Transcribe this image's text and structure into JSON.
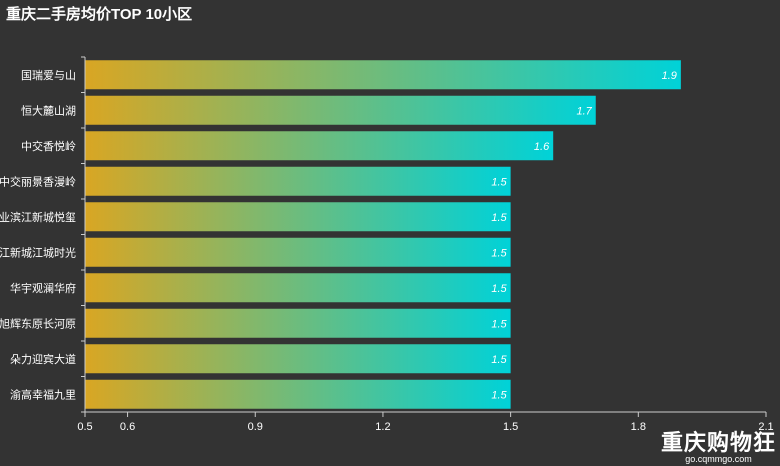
{
  "chart_data": {
    "type": "bar",
    "orientation": "horizontal",
    "title": "重庆二手房均价TOP 10小区",
    "categories": [
      "国瑞爱与山",
      "恒大麓山湖",
      "中交香悦岭",
      "中交丽景香漫岭",
      "业滨江新城悦玺",
      "江新城江城时光",
      "华宇观澜华府",
      "旭辉东原长河原",
      "朵力迎宾大道",
      "渝高幸福九里"
    ],
    "values": [
      1.9,
      1.7,
      1.6,
      1.5,
      1.5,
      1.5,
      1.5,
      1.5,
      1.5,
      1.5
    ],
    "value_labels": [
      "1.9",
      "1.7",
      "1.6",
      "1.5",
      "1.5",
      "1.5",
      "1.5",
      "1.5",
      "1.5",
      "1.5"
    ],
    "xlim": [
      0.5,
      2.1
    ],
    "xticks": [
      0.5,
      0.6,
      0.9,
      1.2,
      1.5,
      1.8,
      2.1
    ],
    "xtick_labels": [
      "0.5",
      "0.6",
      "0.9",
      "1.2",
      "1.5",
      "1.8",
      "2.1"
    ],
    "xlabel": "",
    "ylabel": "",
    "grid": false,
    "legend": "none",
    "colors": {
      "background": "#333333",
      "gradient_start": "#d9a623",
      "gradient_end": "#00d2d8",
      "text": "#ffffff",
      "axis": "#cccccc"
    }
  },
  "watermark": {
    "main": "重庆购物狂",
    "sub": "go.cqmmgo.com"
  }
}
